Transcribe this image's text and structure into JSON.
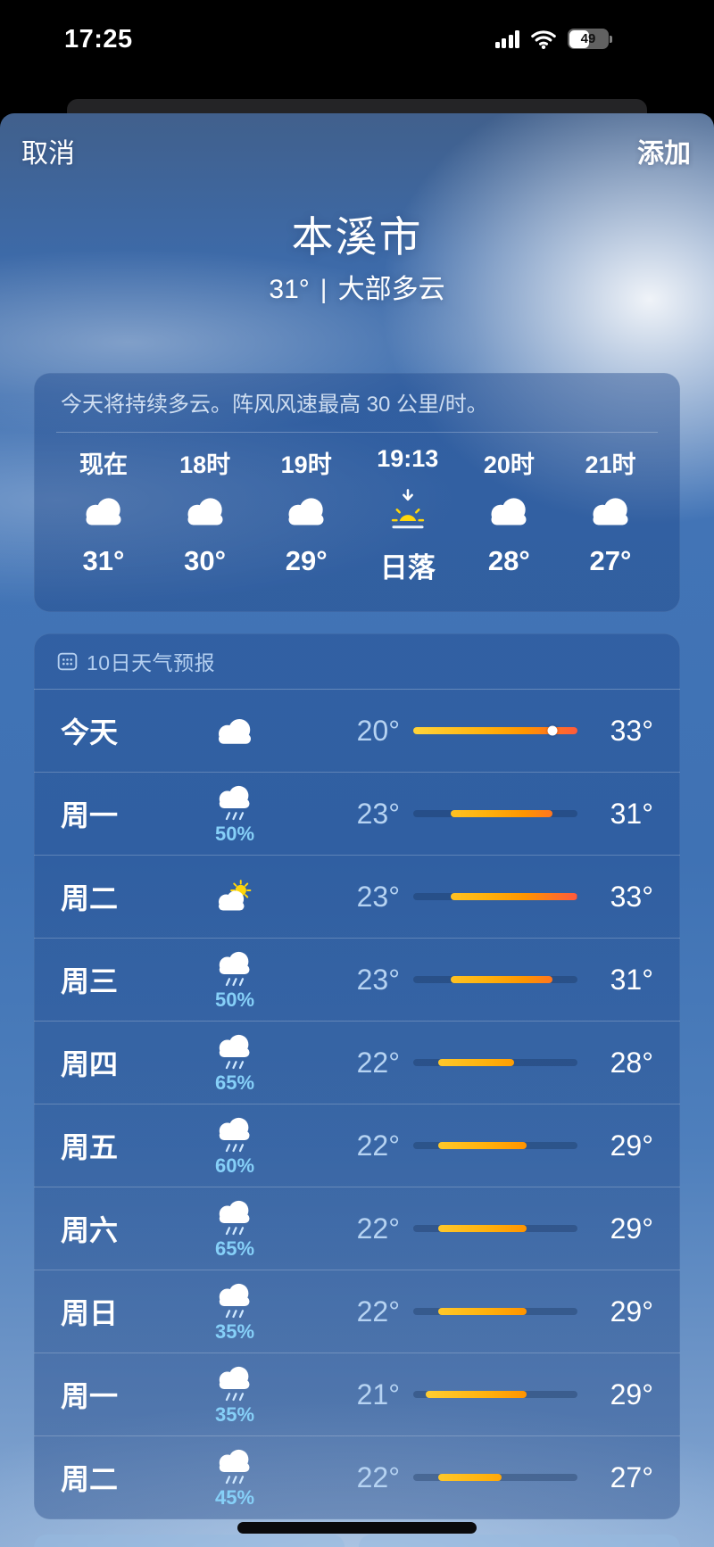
{
  "status_bar": {
    "time": "17:25",
    "battery_percent": "49"
  },
  "sheet_header": {
    "cancel": "取消",
    "add": "添加"
  },
  "location": {
    "city": "本溪市",
    "current_temp": "31°",
    "separator": "|",
    "condition": "大部多云"
  },
  "summary_card": {
    "summary": "今天将持续多云。阵风风速最高 30 公里/时。",
    "hours": [
      {
        "label": "现在",
        "icon": "cloud",
        "value": "31°"
      },
      {
        "label": "18时",
        "icon": "cloud",
        "value": "30°"
      },
      {
        "label": "19时",
        "icon": "cloud",
        "value": "29°"
      },
      {
        "label": "19:13",
        "icon": "sunset",
        "value": "日落"
      },
      {
        "label": "20时",
        "icon": "cloud",
        "value": "28°"
      },
      {
        "label": "21时",
        "icon": "cloud",
        "value": "27°"
      }
    ]
  },
  "forecast_card": {
    "title": "10日天气预报",
    "icon": "calendar",
    "temp_scale": {
      "min": 20,
      "max": 33
    },
    "days": [
      {
        "label": "今天",
        "icon": "cloud",
        "precip": "",
        "low": 20,
        "high": 33,
        "low_label": "20°",
        "high_label": "33°",
        "current": 31
      },
      {
        "label": "周一",
        "icon": "rain",
        "precip": "50%",
        "low": 23,
        "high": 31,
        "low_label": "23°",
        "high_label": "31°",
        "current": null
      },
      {
        "label": "周二",
        "icon": "partly-sunny",
        "precip": "",
        "low": 23,
        "high": 33,
        "low_label": "23°",
        "high_label": "33°",
        "current": null
      },
      {
        "label": "周三",
        "icon": "rain",
        "precip": "50%",
        "low": 23,
        "high": 31,
        "low_label": "23°",
        "high_label": "31°",
        "current": null
      },
      {
        "label": "周四",
        "icon": "rain",
        "precip": "65%",
        "low": 22,
        "high": 28,
        "low_label": "22°",
        "high_label": "28°",
        "current": null
      },
      {
        "label": "周五",
        "icon": "rain",
        "precip": "60%",
        "low": 22,
        "high": 29,
        "low_label": "22°",
        "high_label": "29°",
        "current": null
      },
      {
        "label": "周六",
        "icon": "rain",
        "precip": "65%",
        "low": 22,
        "high": 29,
        "low_label": "22°",
        "high_label": "29°",
        "current": null
      },
      {
        "label": "周日",
        "icon": "rain",
        "precip": "35%",
        "low": 22,
        "high": 29,
        "low_label": "22°",
        "high_label": "29°",
        "current": null
      },
      {
        "label": "周一",
        "icon": "rain",
        "precip": "35%",
        "low": 21,
        "high": 29,
        "low_label": "21°",
        "high_label": "29°",
        "current": null
      },
      {
        "label": "周二",
        "icon": "rain",
        "precip": "45%",
        "low": 22,
        "high": 27,
        "low_label": "22°",
        "high_label": "27°",
        "current": null
      }
    ]
  },
  "colors": {
    "bar_yellow": "#ffd43a",
    "bar_orange": "#ff9500",
    "bar_red": "#ff5a3c",
    "low_temp_blue": "#b6d3f2",
    "precip_blue": "#86d0f8",
    "sun_yellow": "#ffd60a"
  }
}
